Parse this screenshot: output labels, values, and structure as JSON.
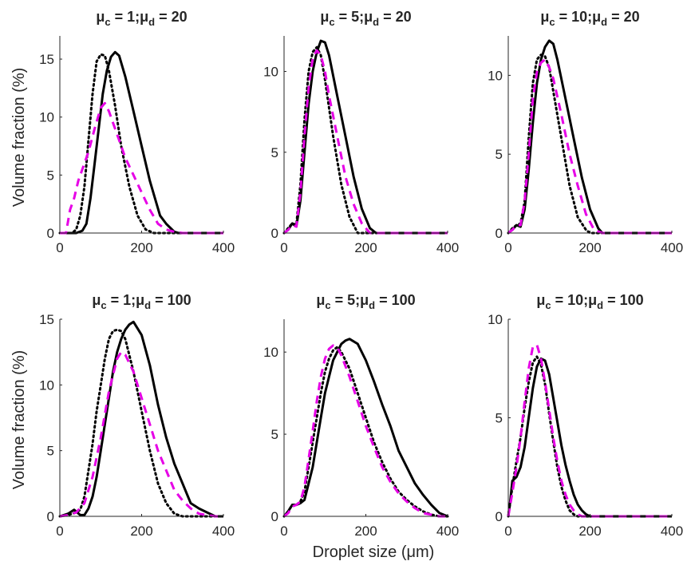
{
  "figure": {
    "ylabel": "Volume fraction (%)",
    "xlabel": "Droplet size (μm)"
  },
  "colors": {
    "solid_series": "#000000",
    "dotted_series": "#000000",
    "dashed_series": "#e600e6",
    "axes": "#262626"
  },
  "chart_data": [
    {
      "type": "line",
      "title": "μc = 1;μd = 20",
      "title_parts": {
        "a": "μ",
        "a_sub": "c",
        "b": " = 1;",
        "c": "μ",
        "c_sub": "d",
        "d": " = 20"
      },
      "xlim": [
        0,
        400
      ],
      "ylim": [
        0,
        17
      ],
      "xticks": [
        0,
        200,
        400
      ],
      "yticks": [
        0,
        5,
        10,
        15
      ],
      "series": [
        {
          "style": "solid",
          "x": [
            0,
            40,
            55,
            65,
            75,
            85,
            95,
            105,
            115,
            125,
            135,
            145,
            160,
            180,
            200,
            220,
            245,
            260,
            280,
            290,
            300,
            400
          ],
          "y": [
            0,
            0,
            0.2,
            0.8,
            3,
            6,
            9,
            12,
            14,
            15.2,
            15.6,
            15.3,
            13.5,
            10.5,
            7.5,
            4.5,
            1.5,
            0.8,
            0.1,
            0,
            0,
            0
          ]
        },
        {
          "style": "dotted",
          "x": [
            0,
            30,
            40,
            50,
            60,
            70,
            80,
            90,
            100,
            110,
            120,
            135,
            150,
            170,
            190,
            210,
            230,
            400
          ],
          "y": [
            0,
            0,
            0.3,
            1.5,
            4,
            8,
            12,
            14.8,
            15.4,
            15.3,
            14,
            11,
            7.5,
            4,
            1.5,
            0.3,
            0,
            0
          ]
        },
        {
          "style": "dashed",
          "x": [
            0,
            15,
            25,
            35,
            45,
            55,
            70,
            85,
            100,
            110,
            120,
            140,
            160,
            180,
            200,
            220,
            240,
            260,
            280,
            300,
            400
          ],
          "y": [
            0,
            0,
            2,
            3,
            4.5,
            5.5,
            7,
            9,
            10.8,
            11.2,
            10.5,
            8.5,
            6.5,
            5,
            3.5,
            2,
            0.8,
            0.3,
            0.1,
            0,
            0
          ]
        }
      ]
    },
    {
      "type": "line",
      "title": "μc = 5;μd = 20",
      "title_parts": {
        "a": "μ",
        "a_sub": "c",
        "b": " = 5;",
        "c": "μ",
        "c_sub": "d",
        "d": " = 20"
      },
      "xlim": [
        0,
        400
      ],
      "ylim": [
        0,
        12.2
      ],
      "xticks": [
        0,
        200,
        400
      ],
      "yticks": [
        0,
        5,
        10
      ],
      "series": [
        {
          "style": "solid",
          "x": [
            0,
            10,
            20,
            30,
            40,
            50,
            60,
            70,
            80,
            90,
            100,
            110,
            130,
            150,
            170,
            190,
            210,
            225,
            400
          ],
          "y": [
            0,
            0.2,
            0.6,
            0.4,
            2,
            5,
            8,
            10,
            11.2,
            11.9,
            11.8,
            11,
            8.5,
            6,
            3.5,
            1.5,
            0.3,
            0,
            0
          ]
        },
        {
          "style": "dotted",
          "x": [
            0,
            10,
            20,
            30,
            40,
            50,
            60,
            70,
            80,
            90,
            100,
            120,
            140,
            160,
            180,
            400
          ],
          "y": [
            0,
            0.3,
            0.6,
            0.5,
            3,
            7,
            10,
            11.2,
            11.5,
            11,
            9.5,
            6,
            3,
            1,
            0,
            0
          ]
        },
        {
          "style": "dashed",
          "x": [
            0,
            10,
            20,
            30,
            40,
            50,
            60,
            70,
            80,
            90,
            100,
            110,
            130,
            150,
            170,
            190,
            210,
            230,
            400
          ],
          "y": [
            0,
            0.2,
            0.5,
            0.4,
            2.5,
            6,
            9,
            10.8,
            11.3,
            11,
            10,
            8.5,
            6,
            3.5,
            1.8,
            0.6,
            0,
            0,
            0
          ]
        }
      ]
    },
    {
      "type": "line",
      "title": "μc = 10;μd = 20",
      "title_parts": {
        "a": "μ",
        "a_sub": "c",
        "b": " = 10;",
        "c": "μ",
        "c_sub": "d",
        "d": " = 20"
      },
      "xlim": [
        0,
        400
      ],
      "ylim": [
        0,
        12.5
      ],
      "xticks": [
        0,
        200,
        400
      ],
      "yticks": [
        0,
        5,
        10
      ],
      "series": [
        {
          "style": "solid",
          "x": [
            0,
            10,
            20,
            30,
            40,
            50,
            60,
            70,
            80,
            90,
            100,
            110,
            120,
            140,
            160,
            180,
            200,
            220,
            230,
            400
          ],
          "y": [
            0,
            0.2,
            0.5,
            0.4,
            1.5,
            4,
            7,
            9.5,
            11,
            11.8,
            12.2,
            12,
            11,
            8.5,
            6,
            3.5,
            1.5,
            0.3,
            0,
            0
          ]
        },
        {
          "style": "dotted",
          "x": [
            0,
            10,
            20,
            30,
            40,
            50,
            60,
            70,
            80,
            90,
            100,
            110,
            130,
            150,
            170,
            190,
            200,
            400
          ],
          "y": [
            0,
            0.3,
            0.5,
            0.6,
            2,
            6,
            9.5,
            11,
            11.3,
            11.2,
            10.5,
            9,
            6,
            3,
            1,
            0.2,
            0,
            0
          ]
        },
        {
          "style": "dashed",
          "x": [
            0,
            10,
            20,
            30,
            40,
            50,
            60,
            70,
            80,
            90,
            100,
            110,
            130,
            150,
            170,
            190,
            210,
            230,
            400
          ],
          "y": [
            0,
            0.2,
            0.5,
            0.5,
            2,
            5,
            8.5,
            10.2,
            10.8,
            11,
            10.5,
            9.8,
            7.5,
            5,
            3,
            1.2,
            0.2,
            0,
            0
          ]
        }
      ]
    },
    {
      "type": "line",
      "title": "μc = 1;μd = 100",
      "title_parts": {
        "a": "μ",
        "a_sub": "c",
        "b": " = 1;",
        "c": "μ",
        "c_sub": "d",
        "d": " = 100"
      },
      "xlim": [
        0,
        400
      ],
      "ylim": [
        0,
        15
      ],
      "xticks": [
        0,
        200,
        400
      ],
      "yticks": [
        0,
        5,
        10,
        15
      ],
      "series": [
        {
          "style": "solid",
          "x": [
            0,
            20,
            35,
            50,
            60,
            70,
            80,
            90,
            100,
            110,
            120,
            130,
            140,
            150,
            160,
            170,
            180,
            200,
            220,
            240,
            260,
            280,
            300,
            320,
            340,
            360,
            380,
            400
          ],
          "y": [
            0,
            0.2,
            0.5,
            0.1,
            0.1,
            0.6,
            1.5,
            3,
            5,
            7,
            9,
            11,
            12.5,
            13.5,
            14.2,
            14.6,
            14.8,
            13.8,
            11.5,
            8.5,
            6,
            4,
            2.5,
            1,
            0.6,
            0.3,
            0,
            0
          ]
        },
        {
          "style": "dotted",
          "x": [
            0,
            20,
            30,
            40,
            50,
            60,
            70,
            80,
            90,
            100,
            110,
            120,
            130,
            140,
            150,
            160,
            180,
            200,
            220,
            240,
            260,
            280,
            300,
            400
          ],
          "y": [
            0,
            0.1,
            0.2,
            0.3,
            0.5,
            1.5,
            3.5,
            5.5,
            8,
            10,
            12,
            13.5,
            14.1,
            14.2,
            14.1,
            13.5,
            11,
            8,
            5,
            2.5,
            1,
            0.2,
            0,
            0
          ]
        },
        {
          "style": "dashed",
          "x": [
            0,
            20,
            40,
            60,
            80,
            100,
            120,
            140,
            150,
            160,
            180,
            200,
            220,
            240,
            260,
            280,
            300,
            320,
            340,
            360,
            380,
            400
          ],
          "y": [
            0,
            0.1,
            0.3,
            1,
            3,
            6,
            9.5,
            12,
            12.5,
            12.3,
            11,
            9,
            7,
            5,
            3.5,
            2,
            1.2,
            0.6,
            0.2,
            0.1,
            0,
            0
          ]
        }
      ]
    },
    {
      "type": "line",
      "title": "μc = 5;μd = 100",
      "title_parts": {
        "a": "μ",
        "a_sub": "c",
        "b": " = 5;",
        "c": "μ",
        "c_sub": "d",
        "d": " = 100"
      },
      "xlim": [
        0,
        400
      ],
      "ylim": [
        0,
        12
      ],
      "xticks": [
        0,
        200,
        400
      ],
      "yticks": [
        0,
        5,
        10
      ],
      "series": [
        {
          "style": "solid",
          "x": [
            0,
            10,
            20,
            30,
            40,
            50,
            60,
            70,
            80,
            90,
            100,
            110,
            120,
            130,
            140,
            150,
            160,
            180,
            200,
            220,
            240,
            260,
            280,
            300,
            320,
            340,
            360,
            380,
            400
          ],
          "y": [
            0,
            0.3,
            0.7,
            0.7,
            0.8,
            1,
            2,
            3,
            4.5,
            6,
            7.5,
            8.5,
            9.5,
            10,
            10.5,
            10.7,
            10.8,
            10.5,
            9.5,
            8.2,
            6.8,
            5.5,
            4,
            3,
            2,
            1.3,
            0.7,
            0.2,
            0
          ]
        },
        {
          "style": "dotted",
          "x": [
            0,
            10,
            20,
            30,
            40,
            50,
            60,
            70,
            80,
            90,
            100,
            110,
            120,
            130,
            140,
            160,
            180,
            200,
            220,
            240,
            260,
            280,
            300,
            320,
            340,
            360,
            380,
            400
          ],
          "y": [
            0,
            0.3,
            0.7,
            0.7,
            0.9,
            1.5,
            3,
            4.5,
            6,
            7.5,
            8.8,
            9.6,
            10.1,
            10.3,
            10,
            9,
            7.5,
            6,
            4.5,
            3.3,
            2.3,
            1.5,
            1,
            0.6,
            0.3,
            0.1,
            0,
            0
          ]
        },
        {
          "style": "dashed",
          "x": [
            0,
            10,
            20,
            30,
            40,
            50,
            60,
            70,
            80,
            90,
            100,
            110,
            120,
            130,
            140,
            160,
            180,
            200,
            220,
            240,
            260,
            280,
            300,
            320,
            340,
            360,
            380,
            400
          ],
          "y": [
            0,
            0.2,
            0.6,
            0.7,
            0.9,
            1.8,
            3.5,
            5.2,
            7,
            8.5,
            9.6,
            10.2,
            10.4,
            10.3,
            9.8,
            8.5,
            7,
            5.5,
            4.2,
            3,
            2.1,
            1.4,
            0.9,
            0.5,
            0.2,
            0.1,
            0,
            0
          ]
        }
      ]
    },
    {
      "type": "line",
      "title": "μc = 10;μd = 100",
      "title_parts": {
        "a": "μ",
        "a_sub": "c",
        "b": " = 10;",
        "c": "μ",
        "c_sub": "d",
        "d": " = 100"
      },
      "xlim": [
        0,
        400
      ],
      "ylim": [
        0,
        10
      ],
      "xticks": [
        0,
        200,
        400
      ],
      "yticks": [
        0,
        5,
        10
      ],
      "series": [
        {
          "style": "solid",
          "x": [
            0,
            5,
            10,
            20,
            30,
            40,
            50,
            60,
            70,
            80,
            90,
            100,
            110,
            120,
            130,
            140,
            150,
            160,
            170,
            180,
            190,
            200,
            400
          ],
          "y": [
            0,
            0.8,
            1.8,
            2,
            2.5,
            3.5,
            5,
            6.5,
            7.6,
            8,
            7.9,
            7.2,
            6,
            4.8,
            3.6,
            2.6,
            1.8,
            1.1,
            0.6,
            0.3,
            0.1,
            0,
            0
          ]
        },
        {
          "style": "dotted",
          "x": [
            0,
            10,
            20,
            30,
            40,
            50,
            60,
            70,
            80,
            90,
            100,
            110,
            120,
            130,
            140,
            150,
            160,
            170,
            400
          ],
          "y": [
            0,
            1.5,
            2.8,
            4,
            5.5,
            6.8,
            7.8,
            8.1,
            7.7,
            6.7,
            5.2,
            3.8,
            2.5,
            1.5,
            0.8,
            0.3,
            0.1,
            0,
            0
          ]
        },
        {
          "style": "dashed",
          "x": [
            0,
            10,
            20,
            30,
            40,
            50,
            60,
            70,
            80,
            90,
            100,
            110,
            120,
            130,
            140,
            150,
            160,
            170,
            180,
            400
          ],
          "y": [
            0,
            1.2,
            2.5,
            4,
            5.8,
            7.5,
            8.6,
            8.7,
            8,
            6.8,
            5.4,
            4,
            2.8,
            1.8,
            1.1,
            0.6,
            0.3,
            0.1,
            0,
            0
          ]
        }
      ]
    }
  ]
}
